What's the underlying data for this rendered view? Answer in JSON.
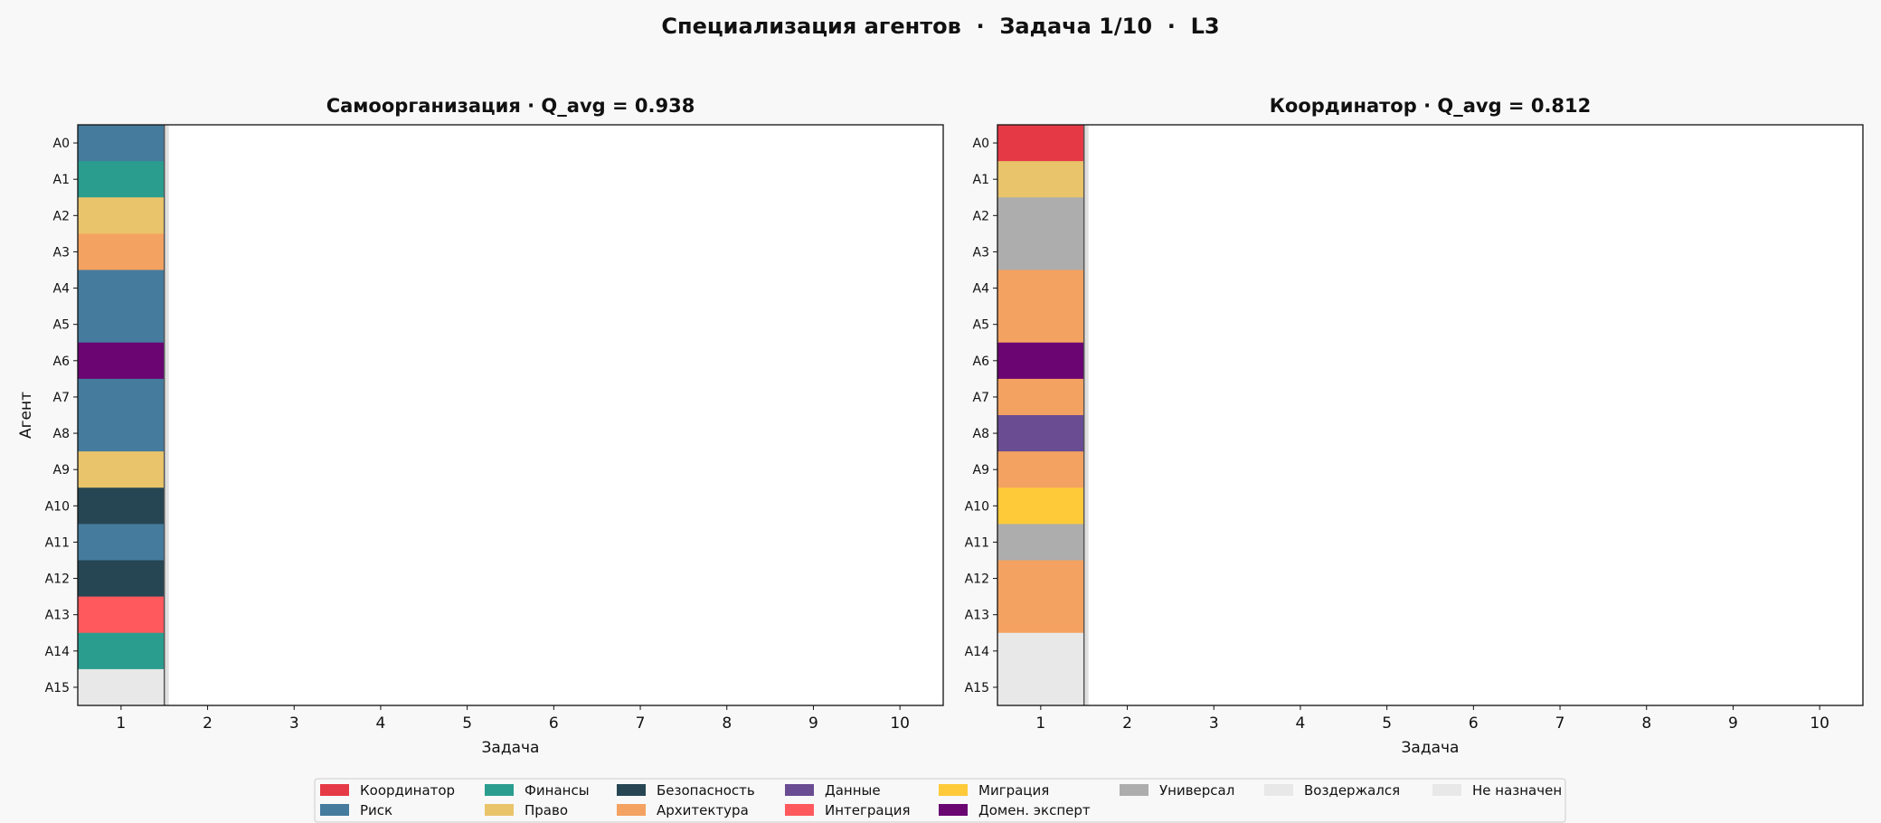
{
  "title": "Специализация агентов  ·  Задача 1/10  ·  L3",
  "legend": [
    {
      "label": "Координатор",
      "color": "#e63946"
    },
    {
      "label": "Риск",
      "color": "#457b9d"
    },
    {
      "label": "Финансы",
      "color": "#2a9d8f"
    },
    {
      "label": "Право",
      "color": "#e9c46a"
    },
    {
      "label": "Безопасность",
      "color": "#264653"
    },
    {
      "label": "Архитектура",
      "color": "#f4a261"
    },
    {
      "label": "Данные",
      "color": "#6a4c93"
    },
    {
      "label": "Интеграция",
      "color": "#ff595e"
    },
    {
      "label": "Миграция",
      "color": "#ffca3a"
    },
    {
      "label": "Домен. эксперт",
      "color": "#6a0572"
    },
    {
      "label": "Универсал",
      "color": "#adadad"
    },
    {
      "label": "Воздержался",
      "color": "#e8e8e8"
    },
    {
      "label": "Не назначен",
      "color": "#e8e8e8"
    }
  ],
  "chart_data": [
    {
      "type": "heatmap",
      "title": "Самоорганизация  ·  Q_avg = 0.938",
      "xlabel": "Задача",
      "ylabel": "Агент",
      "x_ticks": [
        "1",
        "2",
        "3",
        "4",
        "5",
        "6",
        "7",
        "8",
        "9",
        "10"
      ],
      "y_ticks": [
        "A0",
        "A1",
        "A2",
        "A3",
        "A4",
        "A5",
        "A6",
        "A7",
        "A8",
        "A9",
        "A10",
        "A11",
        "A12",
        "A13",
        "A14",
        "A15"
      ],
      "values": [
        [
          "Риск",
          "Финансы",
          "Право",
          "Архитектура",
          "Риск",
          "Риск",
          "Домен. эксперт",
          "Риск",
          "Риск",
          "Право",
          "Безопасность",
          "Риск",
          "Безопасность",
          "Интеграция",
          "Финансы",
          "Не назначен"
        ]
      ]
    },
    {
      "type": "heatmap",
      "title": "Координатор  ·  Q_avg = 0.812",
      "xlabel": "Задача",
      "ylabel": "",
      "x_ticks": [
        "1",
        "2",
        "3",
        "4",
        "5",
        "6",
        "7",
        "8",
        "9",
        "10"
      ],
      "y_ticks": [
        "A0",
        "A1",
        "A2",
        "A3",
        "A4",
        "A5",
        "A6",
        "A7",
        "A8",
        "A9",
        "A10",
        "A11",
        "A12",
        "A13",
        "A14",
        "A15"
      ],
      "values": [
        [
          "Координатор",
          "Право",
          "Универсал",
          "Универсал",
          "Архитектура",
          "Архитектура",
          "Домен. эксперт",
          "Архитектура",
          "Данные",
          "Архитектура",
          "Миграция",
          "Универсал",
          "Архитектура",
          "Архитектура",
          "Не назначен",
          "Не назначен"
        ]
      ]
    }
  ]
}
